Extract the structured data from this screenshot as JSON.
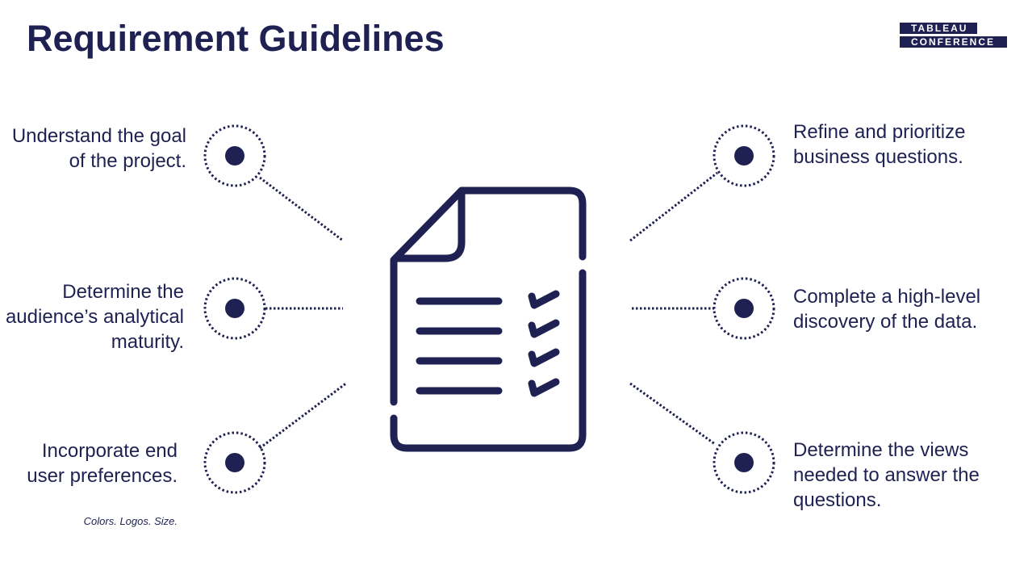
{
  "slide": {
    "title": "Requirement Guidelines",
    "logo": {
      "line1": "TABLEAU",
      "line2": "CONFERENCE"
    }
  },
  "items": {
    "left": [
      {
        "text": "Understand the goal of the project."
      },
      {
        "text": "Determine the audience’s analytical maturity."
      },
      {
        "text": "Incorporate end user preferences.",
        "note": "Colors. Logos. Size."
      }
    ],
    "right": [
      {
        "text": "Refine and prioritize business questions."
      },
      {
        "text": "Complete a high-level discovery of the data."
      },
      {
        "text": "Determine the views needed to answer the questions."
      }
    ]
  },
  "center_icon": "document-checklist-icon",
  "colors": {
    "primary": "#1e2152",
    "background": "#ffffff"
  }
}
